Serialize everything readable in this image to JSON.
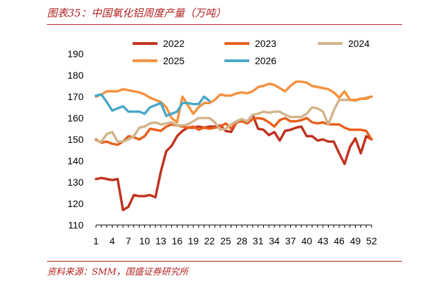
{
  "figure": {
    "title": "图表35：中国氧化铝周度产量（万吨）",
    "source": "资料来源：SMM，国盛证券研究所"
  },
  "colors": {
    "accent": "#b22222"
  },
  "chart_data": {
    "type": "line",
    "title": "",
    "xlabel": "",
    "ylabel": "",
    "ylim": [
      110,
      190
    ],
    "xlim": [
      1,
      52
    ],
    "yticks": [
      110,
      120,
      130,
      140,
      150,
      160,
      170,
      180,
      190
    ],
    "xticks": [
      1,
      4,
      7,
      10,
      13,
      16,
      19,
      22,
      25,
      28,
      31,
      34,
      37,
      40,
      43,
      46,
      49,
      52
    ],
    "grid": false,
    "legend": "top",
    "series": [
      {
        "name": "2022",
        "color": "#c0321e",
        "x": [
          1,
          2,
          3,
          4,
          5,
          6,
          7,
          8,
          9,
          10,
          11,
          12,
          13,
          14,
          15,
          16,
          17,
          18,
          19,
          20,
          21,
          22,
          23,
          24,
          25,
          26,
          27,
          28,
          29,
          30,
          31,
          32,
          33,
          34,
          35,
          36,
          37,
          38,
          39,
          40,
          41,
          42,
          43,
          44,
          45,
          46,
          47,
          48,
          49,
          50,
          51,
          52
        ],
        "values": [
          131.5,
          132,
          131.5,
          131,
          131.5,
          117,
          118.5,
          124,
          123.5,
          123.5,
          124,
          123,
          135,
          144.5,
          147,
          151.5,
          154,
          155.5,
          155.5,
          156,
          155.5,
          156,
          156,
          156.5,
          154,
          153.5,
          158,
          159,
          158.5,
          161.5,
          155,
          154.5,
          152,
          153.5,
          149.5,
          154,
          154.5,
          155.5,
          156,
          151.5,
          151.5,
          149.5,
          150,
          149,
          149,
          143.5,
          138.5,
          146.5,
          150.5,
          143.5,
          151.5,
          150
        ]
      },
      {
        "name": "2023",
        "color": "#e8601c",
        "x": [
          1,
          2,
          3,
          4,
          5,
          6,
          7,
          8,
          9,
          10,
          11,
          12,
          13,
          14,
          15,
          16,
          17,
          18,
          19,
          20,
          21,
          22,
          23,
          24,
          25,
          26,
          27,
          28,
          29,
          30,
          31,
          32,
          33,
          34,
          35,
          36,
          37,
          38,
          39,
          40,
          41,
          42,
          43,
          44,
          45,
          46,
          47,
          48,
          49,
          50,
          51,
          52
        ],
        "values": [
          150,
          148.5,
          149,
          148,
          147.5,
          149,
          151.5,
          151,
          150,
          151.5,
          155,
          154.5,
          154,
          156,
          157,
          156.5,
          156,
          155.5,
          156,
          154.5,
          155.5,
          155,
          155.5,
          156,
          157.5,
          155,
          158,
          158.5,
          157.5,
          159.5,
          160,
          159.5,
          158,
          156,
          159,
          160,
          158.5,
          158.5,
          159,
          160,
          158,
          157.5,
          158,
          157,
          157,
          157,
          155.5,
          154.5,
          154.5,
          154.5,
          154,
          150
        ]
      },
      {
        "name": "2024",
        "color": "#d2b48c",
        "x": [
          1,
          2,
          3,
          4,
          5,
          6,
          7,
          8,
          9,
          10,
          11,
          12,
          13,
          14,
          15,
          16,
          17,
          18,
          19,
          20,
          21,
          22,
          23,
          24,
          25,
          26,
          27,
          28,
          29,
          30,
          31,
          32,
          33,
          34,
          35,
          36,
          37,
          38,
          39,
          40,
          41,
          42,
          43,
          44,
          45,
          46,
          47,
          48,
          49,
          50,
          51,
          52
        ],
        "values": [
          149.5,
          149,
          152.5,
          153.5,
          149,
          149,
          150,
          151.5,
          155.5,
          156,
          157.5,
          158,
          157,
          157.5,
          158,
          156.5,
          156.5,
          157,
          158.5,
          160,
          160,
          160,
          158,
          154.5,
          155,
          157,
          158.5,
          159.5,
          158.5,
          161.5,
          162,
          163,
          162.5,
          163,
          163,
          161.5,
          160.5,
          160.5,
          160.5,
          162,
          165,
          164.5,
          163,
          157,
          163.5,
          168.5,
          168.5,
          168.5,
          168,
          169,
          169.5,
          170
        ]
      },
      {
        "name": "2025",
        "color": "#f5913e",
        "x": [
          1,
          2,
          3,
          4,
          5,
          6,
          7,
          8,
          9,
          10,
          11,
          12,
          13,
          14,
          15,
          16,
          17,
          18,
          19,
          20,
          21,
          22,
          23,
          24,
          25,
          26,
          27,
          28,
          29,
          30,
          31,
          32,
          33,
          34,
          35,
          36,
          37,
          38,
          39,
          40,
          41,
          42,
          43,
          44,
          45,
          46,
          47,
          48,
          49,
          50,
          51,
          52
        ],
        "values": [
          170,
          171,
          172.5,
          172.5,
          172.5,
          173.5,
          173,
          172.5,
          172,
          171,
          169.5,
          168.5,
          167.5,
          165,
          160,
          158,
          170,
          166,
          162,
          165,
          167,
          167,
          168.5,
          171,
          170.5,
          170.5,
          171.5,
          172,
          171.5,
          172.5,
          174.5,
          175,
          176,
          175.5,
          174,
          172.5,
          175,
          177,
          177,
          176.5,
          175,
          174.5,
          174,
          173.5,
          172,
          169.5,
          172.5,
          168.5,
          168.5,
          169,
          169,
          170
        ]
      },
      {
        "name": "2026",
        "color": "#4aa8c8",
        "x": [
          1,
          2,
          3,
          4,
          5,
          6,
          7,
          8,
          9,
          10,
          11,
          12,
          13,
          14,
          15,
          16,
          17,
          18,
          19,
          20,
          21,
          22
        ],
        "values": [
          170.5,
          171,
          167.5,
          163.5,
          164.5,
          165.5,
          163,
          163,
          163,
          162,
          165,
          166,
          167,
          161,
          162,
          163,
          167,
          167,
          166.5,
          166.5,
          170,
          168
        ]
      }
    ]
  }
}
